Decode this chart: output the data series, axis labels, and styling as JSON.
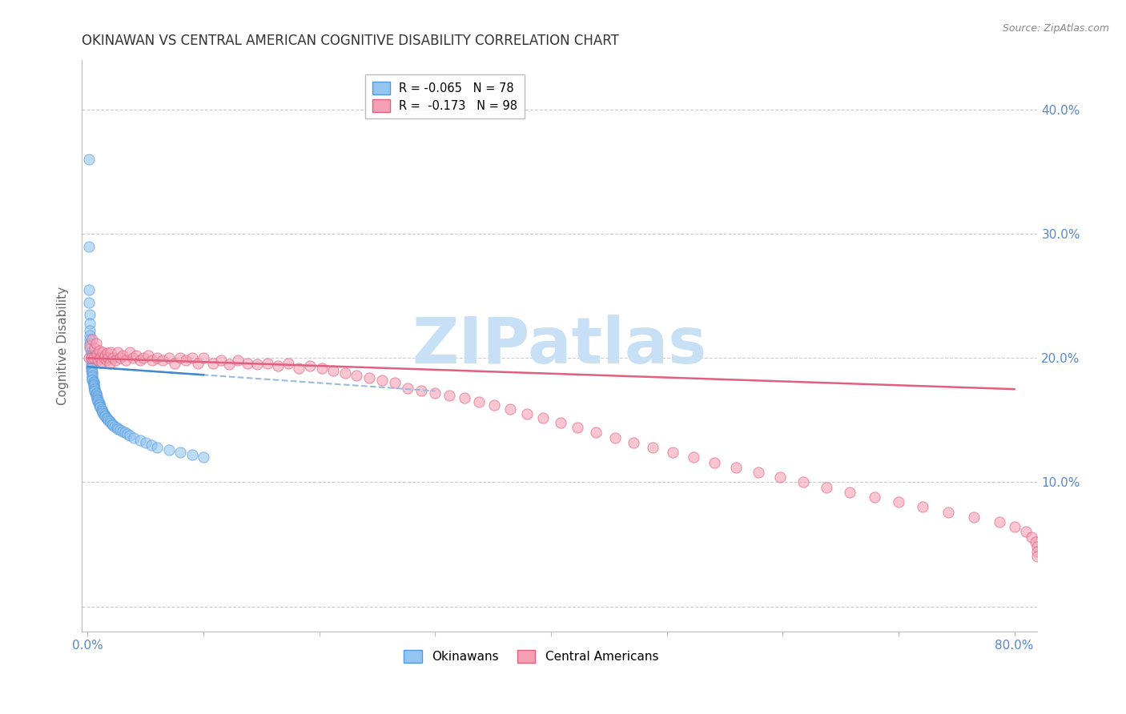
{
  "title": "OKINAWAN VS CENTRAL AMERICAN COGNITIVE DISABILITY CORRELATION CHART",
  "source": "Source: ZipAtlas.com",
  "ylabel": "Cognitive Disability",
  "okinawan_color": "#92c5f0",
  "okinawan_edge": "#5599dd",
  "central_color": "#f5a0b5",
  "central_edge": "#e06080",
  "trendline_ok_solid_color": "#4488cc",
  "trendline_ok_dash_color": "#99bbdd",
  "trendline_ca_color": "#e06080",
  "watermark_text": "ZIPatlas",
  "watermark_color": "#c8e0f5",
  "background_color": "#ffffff",
  "grid_color": "#cccccc",
  "title_color": "#333333",
  "axis_label_color": "#666666",
  "tick_color": "#5588cc",
  "xlim": [
    -0.005,
    0.82
  ],
  "ylim": [
    -0.02,
    0.44
  ],
  "okinawan_x": [
    0.001,
    0.001,
    0.001,
    0.001,
    0.002,
    0.002,
    0.002,
    0.002,
    0.002,
    0.002,
    0.002,
    0.003,
    0.003,
    0.003,
    0.003,
    0.003,
    0.003,
    0.003,
    0.003,
    0.004,
    0.004,
    0.004,
    0.004,
    0.004,
    0.004,
    0.005,
    0.005,
    0.005,
    0.005,
    0.005,
    0.006,
    0.006,
    0.006,
    0.006,
    0.007,
    0.007,
    0.007,
    0.008,
    0.008,
    0.008,
    0.009,
    0.009,
    0.01,
    0.01,
    0.01,
    0.011,
    0.011,
    0.012,
    0.012,
    0.013,
    0.013,
    0.014,
    0.015,
    0.015,
    0.016,
    0.017,
    0.018,
    0.019,
    0.02,
    0.021,
    0.022,
    0.023,
    0.025,
    0.026,
    0.028,
    0.03,
    0.032,
    0.034,
    0.036,
    0.04,
    0.045,
    0.05,
    0.055,
    0.06,
    0.07,
    0.08,
    0.09,
    0.1
  ],
  "okinawan_y": [
    0.36,
    0.29,
    0.255,
    0.245,
    0.235,
    0.228,
    0.222,
    0.218,
    0.215,
    0.212,
    0.208,
    0.205,
    0.202,
    0.2,
    0.198,
    0.195,
    0.193,
    0.192,
    0.19,
    0.189,
    0.188,
    0.186,
    0.185,
    0.183,
    0.182,
    0.181,
    0.18,
    0.179,
    0.178,
    0.177,
    0.176,
    0.175,
    0.174,
    0.173,
    0.172,
    0.171,
    0.17,
    0.169,
    0.168,
    0.167,
    0.166,
    0.165,
    0.164,
    0.163,
    0.162,
    0.161,
    0.16,
    0.159,
    0.158,
    0.157,
    0.156,
    0.155,
    0.154,
    0.153,
    0.152,
    0.151,
    0.15,
    0.149,
    0.148,
    0.147,
    0.146,
    0.145,
    0.144,
    0.143,
    0.142,
    0.141,
    0.14,
    0.139,
    0.138,
    0.136,
    0.134,
    0.132,
    0.13,
    0.128,
    0.126,
    0.124,
    0.122,
    0.12
  ],
  "central_x": [
    0.001,
    0.002,
    0.003,
    0.004,
    0.005,
    0.006,
    0.007,
    0.008,
    0.009,
    0.01,
    0.011,
    0.012,
    0.013,
    0.014,
    0.015,
    0.016,
    0.017,
    0.018,
    0.019,
    0.02,
    0.022,
    0.024,
    0.026,
    0.028,
    0.03,
    0.033,
    0.036,
    0.039,
    0.042,
    0.045,
    0.048,
    0.052,
    0.056,
    0.06,
    0.065,
    0.07,
    0.075,
    0.08,
    0.085,
    0.09,
    0.095,
    0.1,
    0.108,
    0.115,
    0.122,
    0.13,
    0.138,
    0.146,
    0.155,
    0.164,
    0.173,
    0.182,
    0.192,
    0.202,
    0.212,
    0.222,
    0.232,
    0.243,
    0.254,
    0.265,
    0.276,
    0.288,
    0.3,
    0.312,
    0.325,
    0.338,
    0.351,
    0.365,
    0.379,
    0.393,
    0.408,
    0.423,
    0.439,
    0.455,
    0.471,
    0.488,
    0.505,
    0.523,
    0.541,
    0.56,
    0.579,
    0.598,
    0.618,
    0.638,
    0.658,
    0.679,
    0.7,
    0.721,
    0.743,
    0.765,
    0.787,
    0.8,
    0.81,
    0.815,
    0.818,
    0.82,
    0.82,
    0.82
  ],
  "central_y": [
    0.2,
    0.21,
    0.2,
    0.215,
    0.2,
    0.208,
    0.212,
    0.203,
    0.198,
    0.206,
    0.2,
    0.197,
    0.205,
    0.2,
    0.202,
    0.198,
    0.204,
    0.2,
    0.196,
    0.205,
    0.2,
    0.198,
    0.205,
    0.2,
    0.202,
    0.198,
    0.205,
    0.2,
    0.202,
    0.198,
    0.2,
    0.202,
    0.198,
    0.2,
    0.198,
    0.2,
    0.196,
    0.2,
    0.198,
    0.2,
    0.196,
    0.2,
    0.196,
    0.198,
    0.195,
    0.198,
    0.196,
    0.195,
    0.196,
    0.194,
    0.196,
    0.192,
    0.194,
    0.192,
    0.19,
    0.188,
    0.186,
    0.184,
    0.182,
    0.18,
    0.176,
    0.174,
    0.172,
    0.17,
    0.168,
    0.165,
    0.162,
    0.159,
    0.155,
    0.152,
    0.148,
    0.144,
    0.14,
    0.136,
    0.132,
    0.128,
    0.124,
    0.12,
    0.116,
    0.112,
    0.108,
    0.104,
    0.1,
    0.096,
    0.092,
    0.088,
    0.084,
    0.08,
    0.076,
    0.072,
    0.068,
    0.064,
    0.06,
    0.056,
    0.052,
    0.048,
    0.044,
    0.04
  ]
}
